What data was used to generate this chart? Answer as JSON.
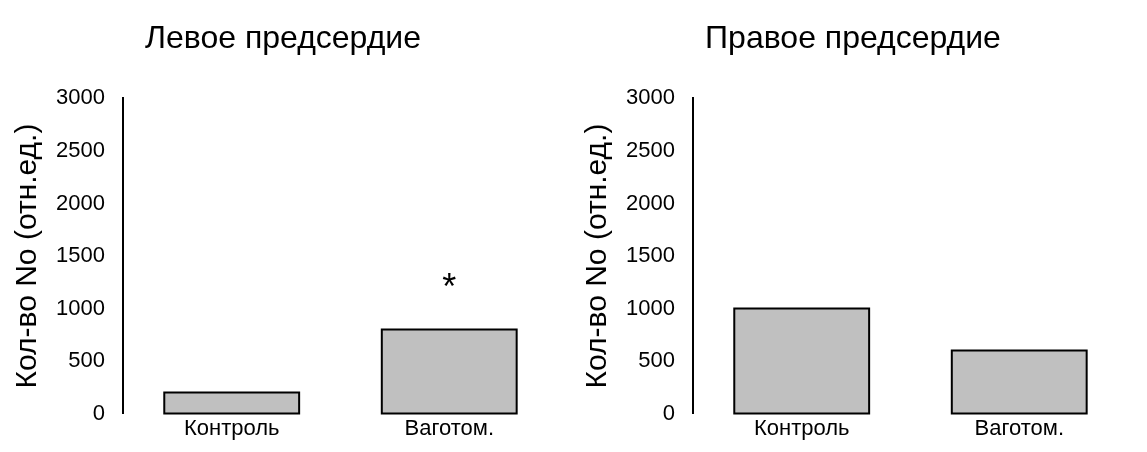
{
  "chart_data": [
    {
      "type": "bar",
      "title": "Левое предсердие",
      "ylabel": "Кол-во No (отн.ед.)",
      "categories": [
        "Контроль",
        "Ваготом."
      ],
      "values": [
        200,
        800
      ],
      "color": "#c0c0c0",
      "ylim": [
        0,
        3000
      ],
      "yticks": [
        0,
        500,
        1000,
        1500,
        2000,
        2500,
        3000
      ],
      "grid": false,
      "legend": false,
      "annotations": [
        "*"
      ]
    },
    {
      "type": "bar",
      "title": "Правое предсердие",
      "ylabel": "Кол-во No (отн.ед.)",
      "categories": [
        "Контроль",
        "Ваготом."
      ],
      "values": [
        1000,
        600
      ],
      "color": "#c0c0c0",
      "ylim": [
        0,
        3000
      ],
      "yticks": [
        0,
        500,
        1000,
        1500,
        2000,
        2500,
        3000
      ],
      "grid": false,
      "legend": false
    }
  ]
}
